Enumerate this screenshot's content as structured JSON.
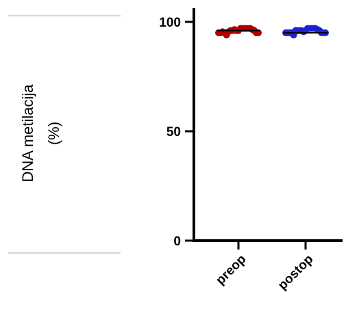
{
  "chart_data": {
    "type": "scatter",
    "ylabel_lines": [
      "DNA metilacija",
      "(%)"
    ],
    "ylim": [
      0,
      100
    ],
    "yticks": [
      "0",
      "50",
      "100"
    ],
    "categories": [
      "preop",
      "postop"
    ],
    "series": [
      {
        "category": "preop",
        "color": "#b00000",
        "mean": 96,
        "values": [
          95,
          95,
          95.5,
          95,
          94,
          95.5,
          96,
          96,
          96.5,
          96,
          96,
          97,
          97,
          97,
          97,
          97,
          97,
          96.5,
          96,
          95,
          95
        ]
      },
      {
        "category": "postop",
        "color": "#1f1fd6",
        "mean": 95,
        "values": [
          95,
          95,
          95,
          95,
          94,
          96,
          96,
          96,
          96,
          95.5,
          96,
          97,
          97,
          97,
          97,
          97,
          96.5,
          96,
          95,
          95,
          95
        ]
      }
    ],
    "grid": false,
    "legend": "none"
  }
}
